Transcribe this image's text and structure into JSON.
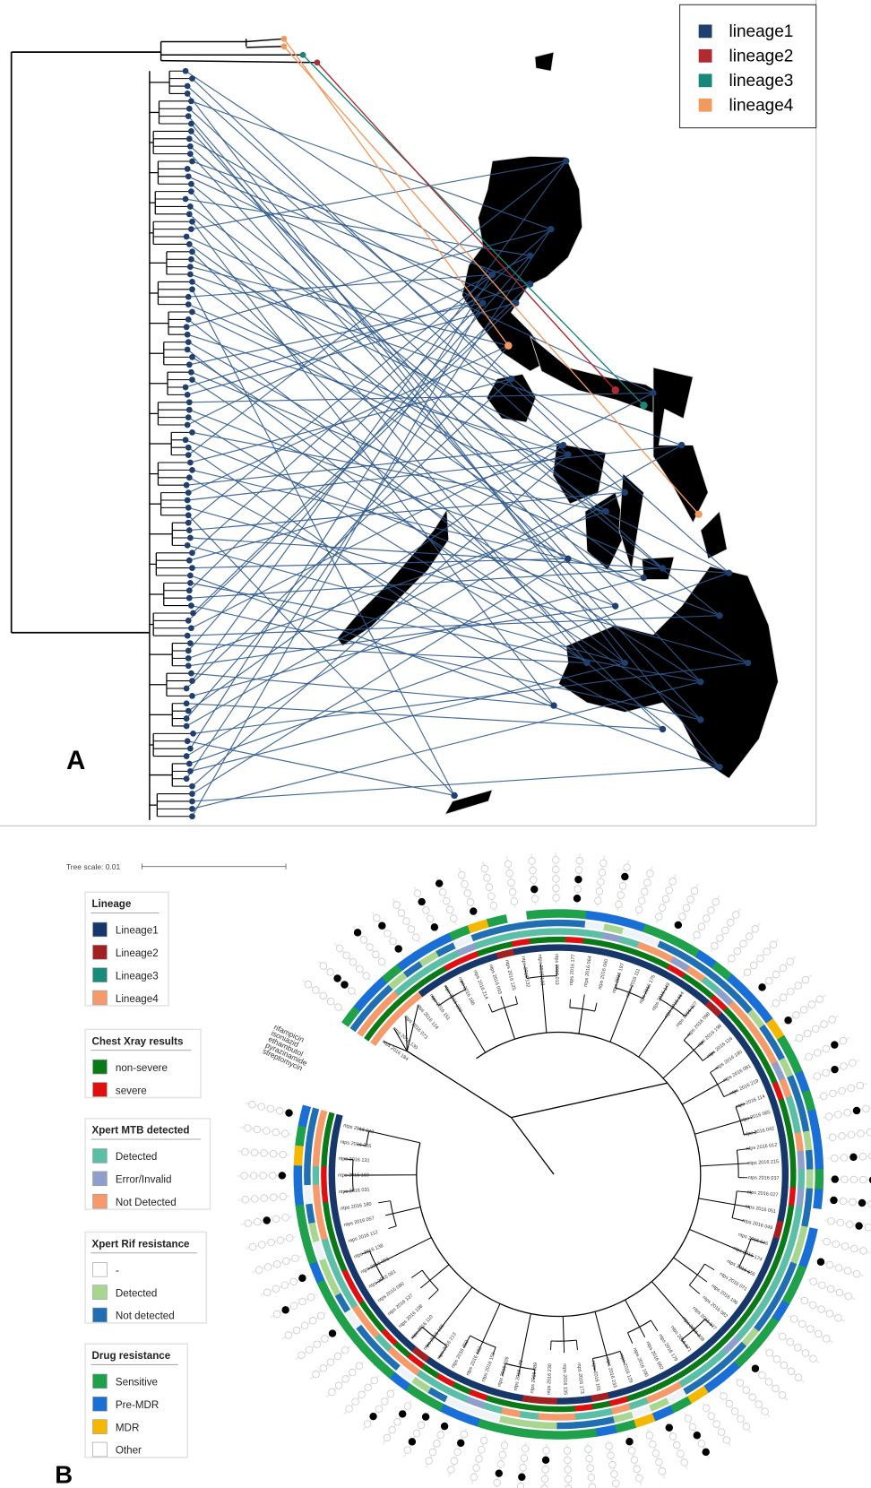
{
  "panel_a": {
    "label": "A",
    "legend": [
      "lineage1",
      "lineage2",
      "lineage3",
      "lineage4"
    ]
  },
  "panel_b": {
    "label": "B",
    "tree_scale": "Tree scale: 0.01",
    "ring_labels": [
      "streptomycin",
      "pyrazinamide",
      "ethambutol",
      "isoniazid",
      "rifampicin"
    ],
    "legend_groups": [
      {
        "title": "Lineage",
        "items": [
          "Lineage1",
          "Lineage2",
          "Lineage3",
          "Lineage4"
        ]
      },
      {
        "title": "Chest Xray results",
        "items": [
          "non-severe",
          "severe"
        ]
      },
      {
        "title": "Xpert MTB detected",
        "items": [
          "Detected",
          "Error/Invalid",
          "Not Detected"
        ]
      },
      {
        "title": "Xpert Rif resistance",
        "items": [
          "-",
          "Detected",
          "Not detected"
        ]
      },
      {
        "title": "Drug resistance",
        "items": [
          "Sensitive",
          "Pre-MDR",
          "MDR",
          "Other"
        ]
      }
    ],
    "leaf_labels": [
      "ntps 2016 184",
      "ntps 2016 130",
      "ntps 2016 073",
      "ntps 2016 124",
      "ntps 2016 151",
      "ntps 2016 220",
      "ntps 2016 186",
      "ntps 2016 214",
      "ntps 2016 093",
      "ntps 2016 125",
      "ntps 2016 132",
      "ntps 2016 133",
      "ntps 2016 013",
      "ntps 2016 177",
      "ntps 2016 064",
      "ntps 2016 060",
      "ntps 2016 197",
      "ntps 2016 111",
      "ntps 2016 175",
      "ntps 2016 149",
      "ntps 2016 164",
      "ntps 2016 127",
      "ntps 2016 098",
      "ntps 2016 198",
      "ntps 2016 116",
      "ntps 2016 190",
      "ntps 2016 061",
      "ntps 2016 219",
      "ntps 2016 114",
      "ntps 2016 065",
      "ntps 2016 042",
      "ntps 2016 012",
      "ntps 2016 215",
      "ntps 2016 037",
      "ntps 2016 027",
      "ntps 2016 051",
      "ntps 2016 049",
      "ntps 2016 046",
      "ntps 2016 174",
      "ntps 2016 155",
      "ntps 2016 071",
      "ntps 2016 196",
      "ntps 2016 082",
      "ntps 2016 077",
      "ntps 2016 208",
      "ntps 2016 171",
      "ntps 2016 179",
      "ntps 2016 062",
      "ntps 2016 100",
      "ntps 2016 129",
      "ntps 2016 233",
      "ntps 2016 101",
      "ntps 2016 173",
      "ntps 2016 135",
      "ntps 2016 230",
      "ntps 2016 089",
      "ntps 2016 178",
      "ntps 2016 026",
      "ntps 2016 150",
      "ntps 2016 102",
      "ntps 2016 232",
      "ntps 2016 213",
      "ntps 2016 195",
      "ntps 2016 110",
      "ntps 2016 108",
      "ntps 2016 137",
      "ntps 2016 090",
      "ntps 2016 001",
      "ntps 2016 091",
      "ntps 2016 138",
      "ntps 2016 112",
      "ntps 2016 057",
      "ntps 2016 180",
      "ntps 2016 031",
      "ntps 2016 169",
      "ntps 2016 131",
      "ntps 2016 205",
      "ntps 2016 040"
    ]
  }
}
